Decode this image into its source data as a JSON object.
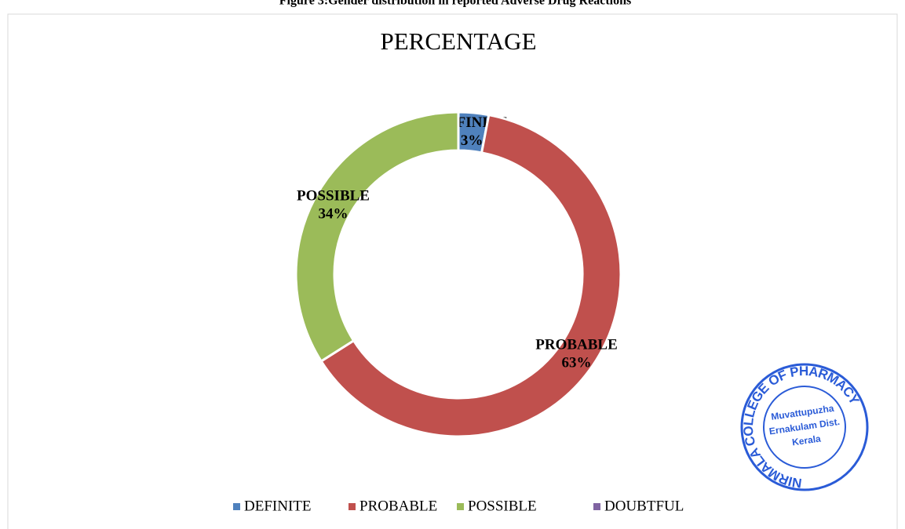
{
  "caption": "Figure 3:Gender distribution in reported Adverse Drug Reactions",
  "chart_data": {
    "type": "donut",
    "title": "PERCENTAGE",
    "categories": [
      "DEFINITE",
      "PROBABLE",
      "POSSIBLE",
      "DOUBTFUL"
    ],
    "values": [
      3,
      63,
      34,
      0
    ],
    "value_labels": [
      "3%",
      "63%",
      "34%",
      null
    ],
    "colors": [
      "#4f81bd",
      "#c0504d",
      "#9bbb59",
      "#8064a2"
    ],
    "legend": "bottom"
  },
  "stamp": {
    "ring": "NIRMALA COLLEGE OF PHARMACY",
    "lines": [
      "Muvattupuzha",
      "Ernakulam Dist.",
      "Kerala"
    ]
  }
}
